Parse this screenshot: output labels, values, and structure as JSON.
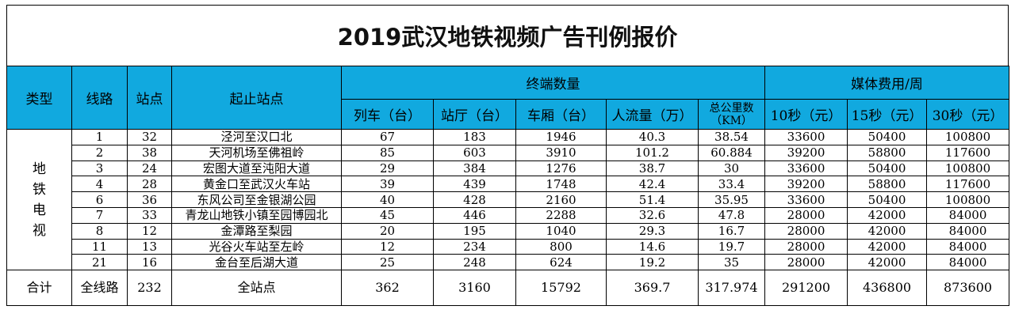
{
  "title": "2019武汉地铁视频广告刊例报价",
  "headers": {
    "type": "类型",
    "line": "线路",
    "stations": "站点",
    "route": "起止站点",
    "terminal_group": "终端数量",
    "media_group": "媒体费用/周",
    "trains": "列车（台）",
    "halls": "站厅（台）",
    "cars": "车厢（台）",
    "flow": "人流量（万）",
    "km_line1": "总公里数",
    "km_line2": "（KM）",
    "s10": "10秒（元）",
    "s15": "15秒（元）",
    "s30": "30秒（元）"
  },
  "type_chars": [
    "地",
    "铁",
    "电",
    "视"
  ],
  "rows": [
    {
      "line": "1",
      "stations": "32",
      "route": "泾河至汉口北",
      "trains": "67",
      "halls": "183",
      "cars": "1946",
      "flow": "40.3",
      "km": "38.54",
      "s10": "33600",
      "s15": "50400",
      "s30": "100800"
    },
    {
      "line": "2",
      "stations": "38",
      "route": "天河机场至佛祖岭",
      "trains": "85",
      "halls": "603",
      "cars": "3910",
      "flow": "101.2",
      "km": "60.884",
      "s10": "39200",
      "s15": "58800",
      "s30": "117600"
    },
    {
      "line": "3",
      "stations": "24",
      "route": "宏图大道至沌阳大道",
      "trains": "29",
      "halls": "384",
      "cars": "1276",
      "flow": "38.7",
      "km": "30",
      "s10": "33600",
      "s15": "50400",
      "s30": "100800"
    },
    {
      "line": "4",
      "stations": "28",
      "route": "黄金口至武汉火车站",
      "trains": "39",
      "halls": "439",
      "cars": "1748",
      "flow": "42.4",
      "km": "33.4",
      "s10": "39200",
      "s15": "58800",
      "s30": "117600"
    },
    {
      "line": "6",
      "stations": "36",
      "route": "东风公司至金银湖公园",
      "trains": "40",
      "halls": "428",
      "cars": "2160",
      "flow": "51.4",
      "km": "35.95",
      "s10": "33600",
      "s15": "50400",
      "s30": "100800"
    },
    {
      "line": "7",
      "stations": "33",
      "route": "青龙山地铁小镇至园博园北",
      "trains": "45",
      "halls": "446",
      "cars": "2288",
      "flow": "32.6",
      "km": "47.8",
      "s10": "28000",
      "s15": "42000",
      "s30": "84000"
    },
    {
      "line": "8",
      "stations": "12",
      "route": "金潭路至梨园",
      "trains": "20",
      "halls": "195",
      "cars": "1040",
      "flow": "29.3",
      "km": "16.7",
      "s10": "28000",
      "s15": "42000",
      "s30": "84000"
    },
    {
      "line": "11",
      "stations": "13",
      "route": "光谷火车站至左岭",
      "trains": "12",
      "halls": "234",
      "cars": "800",
      "flow": "14.6",
      "km": "19.7",
      "s10": "28000",
      "s15": "42000",
      "s30": "84000"
    },
    {
      "line": "21",
      "stations": "16",
      "route": "金台至后湖大道",
      "trains": "25",
      "halls": "248",
      "cars": "624",
      "flow": "19.2",
      "km": "35",
      "s10": "28000",
      "s15": "42000",
      "s30": "84000"
    }
  ],
  "total": {
    "label": "合计",
    "line": "全线路",
    "stations": "232",
    "route": "全站点",
    "trains": "362",
    "halls": "3160",
    "cars": "15792",
    "flow": "369.7",
    "km": "317.974",
    "s10": "291200",
    "s15": "436800",
    "s30": "873600"
  }
}
